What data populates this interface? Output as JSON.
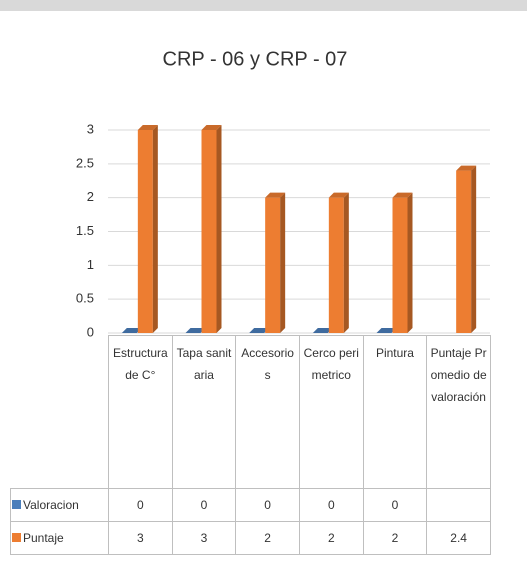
{
  "chart_data": {
    "type": "bar3d",
    "title": "CRP - 06 y CRP - 07",
    "categories": [
      "Estructura de C°",
      "Tapa sanitaria",
      "Accesorios",
      "Cerco perimetrico",
      "Pintura",
      "Puntaje Promedio de valoración"
    ],
    "series": [
      {
        "name": "Valoracion",
        "color": "#4a7ebb",
        "values": [
          0,
          0,
          0,
          0,
          0,
          null
        ]
      },
      {
        "name": "Puntaje",
        "color": "#ed7d31",
        "values": [
          3,
          3,
          2,
          2,
          2,
          2.4
        ]
      }
    ],
    "ylim": [
      0,
      3
    ],
    "yticks": [
      0,
      0.5,
      1,
      1.5,
      2,
      2.5,
      3
    ],
    "grid": true,
    "data_table": true
  }
}
